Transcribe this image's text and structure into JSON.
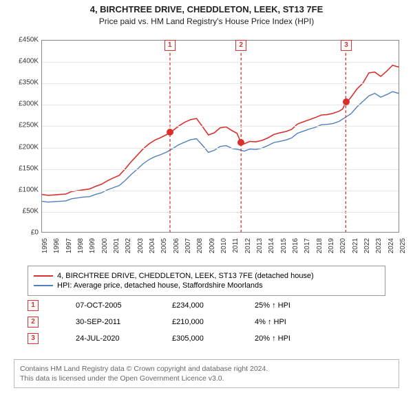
{
  "header": {
    "title1": "4, BIRCHTREE DRIVE, CHEDDLETON, LEEK, ST13 7FE",
    "title2": "Price paid vs. HM Land Registry's House Price Index (HPI)"
  },
  "colors": {
    "series_property": "#d9302c",
    "series_hpi": "#4f7fbf",
    "grid": "#e6e6e6",
    "axis": "#888888",
    "marker_border": "#d9302c",
    "marker_text": "#d9302c",
    "footer_text": "#666666"
  },
  "chart": {
    "type": "line",
    "x_years": [
      1995,
      1996,
      1997,
      1998,
      1999,
      2000,
      2001,
      2002,
      2003,
      2004,
      2005,
      2006,
      2007,
      2008,
      2009,
      2010,
      2011,
      2012,
      2013,
      2014,
      2015,
      2016,
      2017,
      2018,
      2019,
      2020,
      2021,
      2022,
      2023,
      2024,
      2025
    ],
    "x_min": 1995,
    "x_max": 2025,
    "y_min": 0,
    "y_max": 450000,
    "y_ticks": [
      0,
      50000,
      100000,
      150000,
      200000,
      250000,
      300000,
      350000,
      400000,
      450000
    ],
    "y_tick_labels": [
      "£0",
      "£50K",
      "£100K",
      "£150K",
      "£200K",
      "£250K",
      "£300K",
      "£350K",
      "£400K",
      "£450K"
    ],
    "series_property": {
      "label": "4, BIRCHTREE DRIVE, CHEDDLETON, LEEK, ST13 7FE (detached house)",
      "line_width": 1.6,
      "points": [
        [
          1995.0,
          88000
        ],
        [
          1995.5,
          86000
        ],
        [
          1996.0,
          87000
        ],
        [
          1996.5,
          88000
        ],
        [
          1997.0,
          89000
        ],
        [
          1997.5,
          95000
        ],
        [
          1998.0,
          97000
        ],
        [
          1998.5,
          99000
        ],
        [
          1999.0,
          101000
        ],
        [
          1999.5,
          107000
        ],
        [
          2000.0,
          112000
        ],
        [
          2000.5,
          120000
        ],
        [
          2001.0,
          127000
        ],
        [
          2001.5,
          133000
        ],
        [
          2002.0,
          148000
        ],
        [
          2002.5,
          165000
        ],
        [
          2003.0,
          180000
        ],
        [
          2003.5,
          195000
        ],
        [
          2004.0,
          207000
        ],
        [
          2004.5,
          216000
        ],
        [
          2005.0,
          222000
        ],
        [
          2005.5,
          229000
        ],
        [
          2005.77,
          234000
        ],
        [
          2006.0,
          238000
        ],
        [
          2006.5,
          249000
        ],
        [
          2007.0,
          258000
        ],
        [
          2007.5,
          264000
        ],
        [
          2008.0,
          267000
        ],
        [
          2008.5,
          248000
        ],
        [
          2009.0,
          228000
        ],
        [
          2009.5,
          233000
        ],
        [
          2010.0,
          245000
        ],
        [
          2010.5,
          247000
        ],
        [
          2011.0,
          238000
        ],
        [
          2011.4,
          232000
        ],
        [
          2011.75,
          210000
        ],
        [
          2012.0,
          207000
        ],
        [
          2012.5,
          213000
        ],
        [
          2013.0,
          212000
        ],
        [
          2013.5,
          215000
        ],
        [
          2014.0,
          221000
        ],
        [
          2014.5,
          229000
        ],
        [
          2015.0,
          233000
        ],
        [
          2015.5,
          236000
        ],
        [
          2016.0,
          241000
        ],
        [
          2016.5,
          254000
        ],
        [
          2017.0,
          259000
        ],
        [
          2017.5,
          264000
        ],
        [
          2018.0,
          269000
        ],
        [
          2018.5,
          275000
        ],
        [
          2019.0,
          276000
        ],
        [
          2019.5,
          279000
        ],
        [
          2020.0,
          284000
        ],
        [
          2020.3,
          289000
        ],
        [
          2020.56,
          305000
        ],
        [
          2020.8,
          310000
        ],
        [
          2021.0,
          317000
        ],
        [
          2021.5,
          336000
        ],
        [
          2022.0,
          350000
        ],
        [
          2022.5,
          374000
        ],
        [
          2023.0,
          376000
        ],
        [
          2023.5,
          366000
        ],
        [
          2024.0,
          378000
        ],
        [
          2024.5,
          392000
        ],
        [
          2025.0,
          388000
        ]
      ]
    },
    "series_hpi": {
      "label": "HPI: Average price, detached house, Staffordshire Moorlands",
      "line_width": 1.4,
      "points": [
        [
          1995.0,
          72000
        ],
        [
          1995.5,
          70000
        ],
        [
          1996.0,
          71000
        ],
        [
          1996.5,
          72000
        ],
        [
          1997.0,
          73000
        ],
        [
          1997.5,
          78000
        ],
        [
          1998.0,
          80000
        ],
        [
          1998.5,
          82000
        ],
        [
          1999.0,
          83000
        ],
        [
          1999.5,
          88000
        ],
        [
          2000.0,
          92000
        ],
        [
          2000.5,
          99000
        ],
        [
          2001.0,
          104000
        ],
        [
          2001.5,
          109000
        ],
        [
          2002.0,
          121000
        ],
        [
          2002.5,
          135000
        ],
        [
          2003.0,
          147000
        ],
        [
          2003.5,
          160000
        ],
        [
          2004.0,
          170000
        ],
        [
          2004.5,
          177000
        ],
        [
          2005.0,
          182000
        ],
        [
          2005.5,
          188000
        ],
        [
          2006.0,
          196000
        ],
        [
          2006.5,
          205000
        ],
        [
          2007.0,
          211000
        ],
        [
          2007.5,
          217000
        ],
        [
          2008.0,
          219000
        ],
        [
          2008.5,
          204000
        ],
        [
          2009.0,
          187000
        ],
        [
          2009.5,
          192000
        ],
        [
          2010.0,
          201000
        ],
        [
          2010.5,
          203000
        ],
        [
          2011.0,
          196000
        ],
        [
          2011.5,
          194000
        ],
        [
          2012.0,
          190000
        ],
        [
          2012.5,
          195000
        ],
        [
          2013.0,
          194000
        ],
        [
          2013.5,
          197000
        ],
        [
          2014.0,
          203000
        ],
        [
          2014.5,
          210000
        ],
        [
          2015.0,
          213000
        ],
        [
          2015.5,
          216000
        ],
        [
          2016.0,
          221000
        ],
        [
          2016.5,
          232000
        ],
        [
          2017.0,
          237000
        ],
        [
          2017.5,
          242000
        ],
        [
          2018.0,
          246000
        ],
        [
          2018.5,
          252000
        ],
        [
          2019.0,
          253000
        ],
        [
          2019.5,
          255000
        ],
        [
          2020.0,
          260000
        ],
        [
          2020.5,
          269000
        ],
        [
          2021.0,
          278000
        ],
        [
          2021.5,
          294000
        ],
        [
          2022.0,
          307000
        ],
        [
          2022.5,
          320000
        ],
        [
          2023.0,
          326000
        ],
        [
          2023.5,
          317000
        ],
        [
          2024.0,
          323000
        ],
        [
          2024.5,
          330000
        ],
        [
          2025.0,
          326000
        ]
      ]
    },
    "sale_markers": [
      {
        "n": "1",
        "year": 2005.77,
        "price": 234000
      },
      {
        "n": "2",
        "year": 2011.75,
        "price": 210000
      },
      {
        "n": "3",
        "year": 2020.56,
        "price": 305000
      }
    ]
  },
  "legend": {
    "rows": [
      {
        "color_key": "series_property",
        "label": "4, BIRCHTREE DRIVE, CHEDDLETON, LEEK, ST13 7FE (detached house)"
      },
      {
        "color_key": "series_hpi",
        "label": "HPI: Average price, detached house, Staffordshire Moorlands"
      }
    ]
  },
  "sales": [
    {
      "n": "1",
      "date": "07-OCT-2005",
      "price": "£234,000",
      "delta": "25% ↑ HPI"
    },
    {
      "n": "2",
      "date": "30-SEP-2011",
      "price": "£210,000",
      "delta": "4% ↑ HPI"
    },
    {
      "n": "3",
      "date": "24-JUL-2020",
      "price": "£305,000",
      "delta": "20% ↑ HPI"
    }
  ],
  "footer": {
    "line1": "Contains HM Land Registry data © Crown copyright and database right 2024.",
    "line2": "This data is licensed under the Open Government Licence v3.0."
  }
}
